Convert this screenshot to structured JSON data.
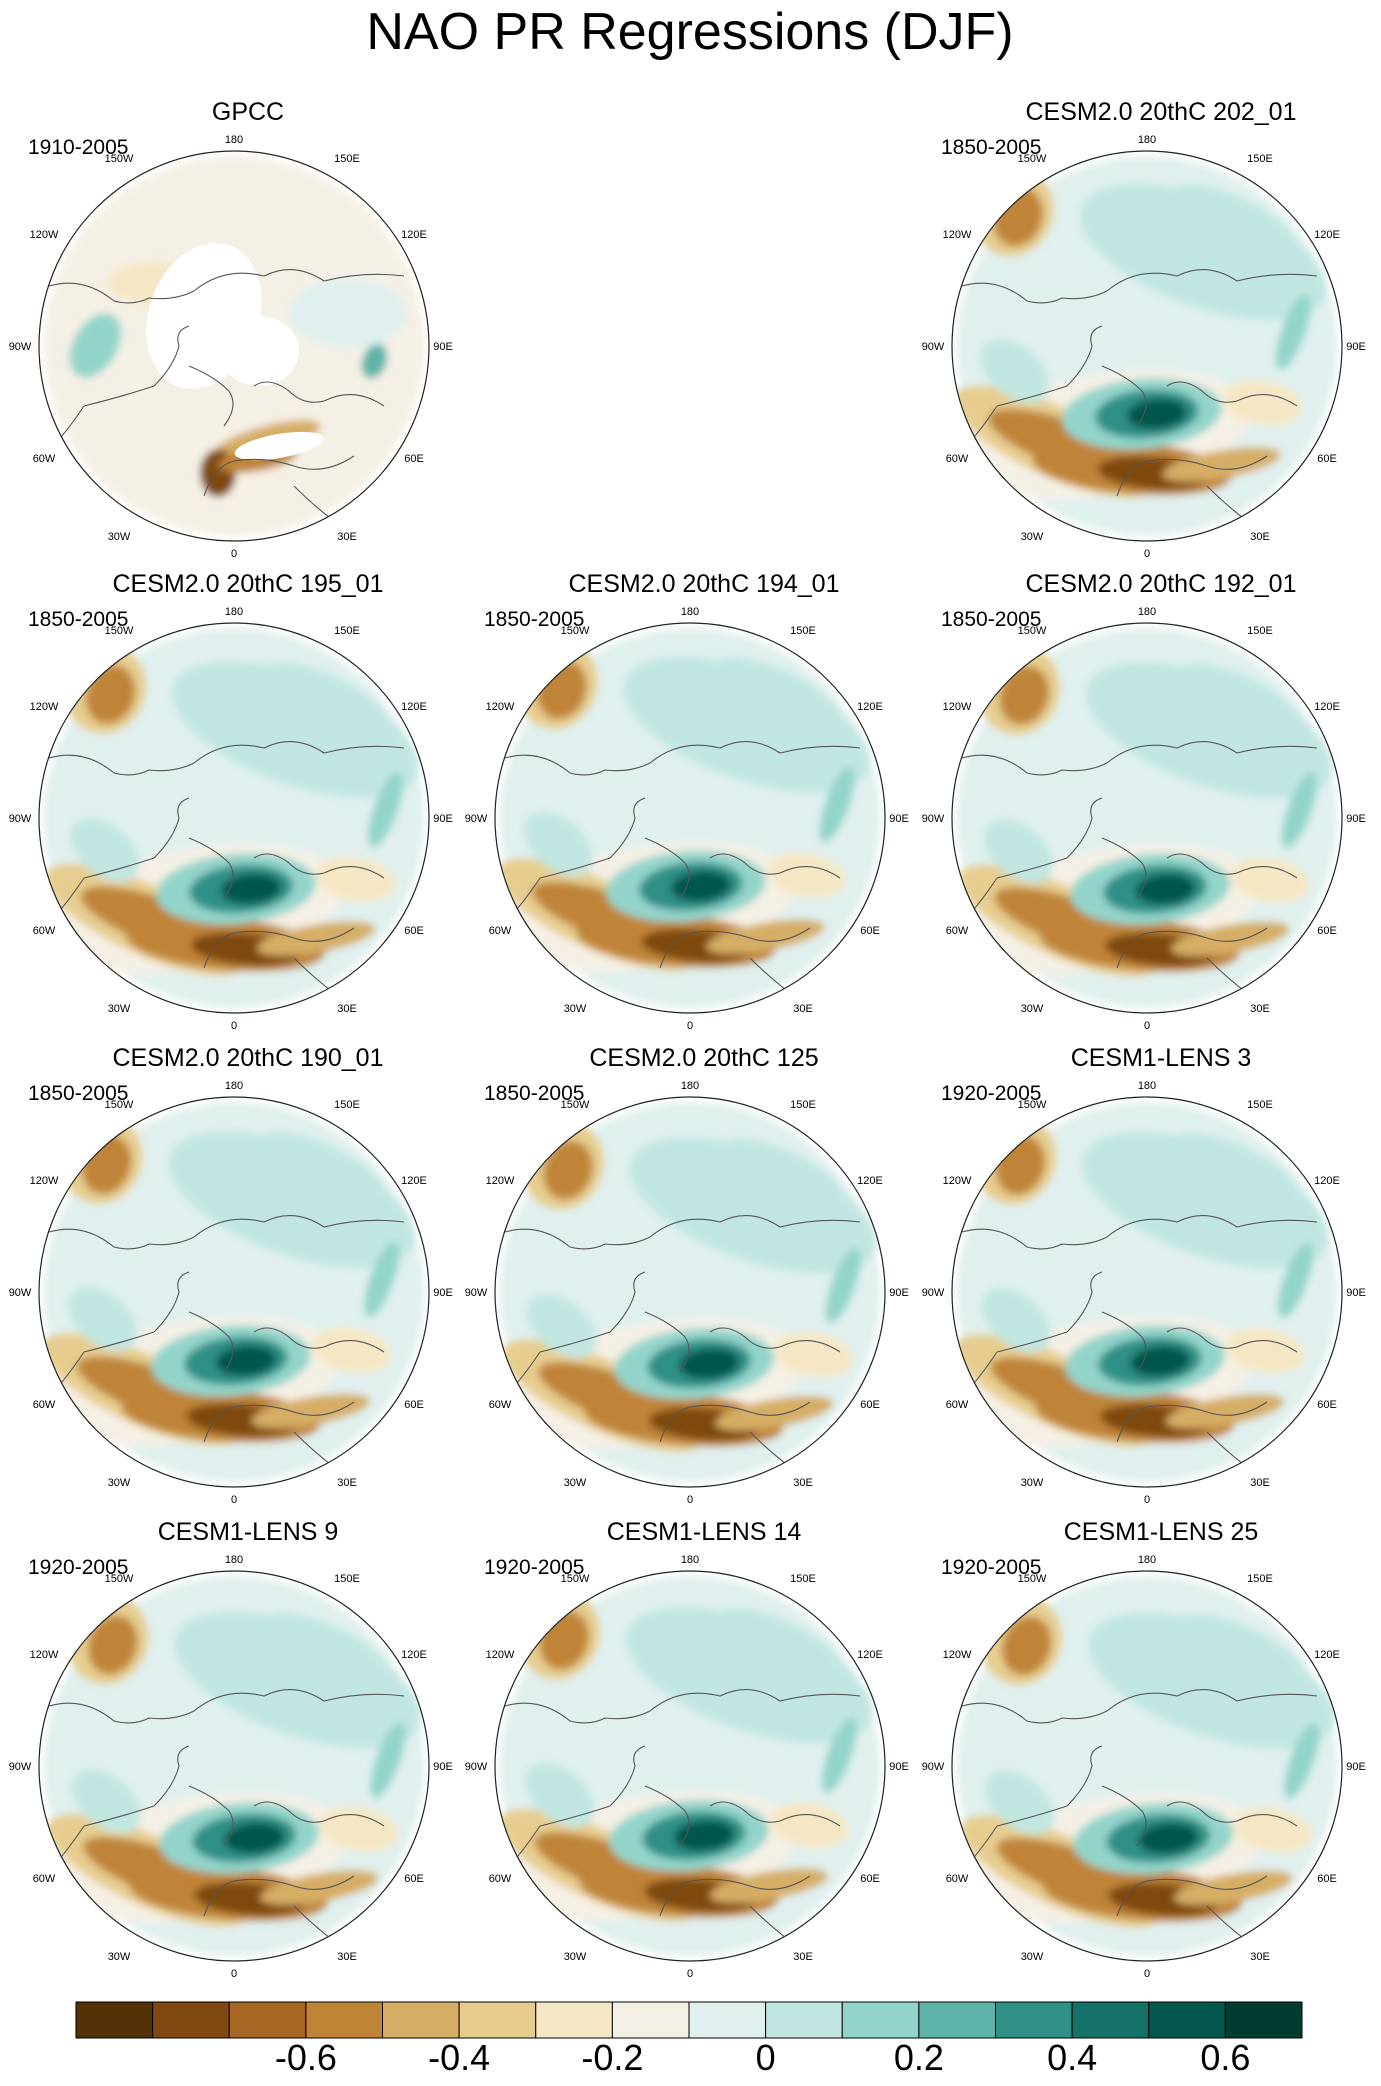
{
  "title": "NAO PR Regressions (DJF)",
  "panels": [
    {
      "title": "GPCC",
      "years": "1910-2005",
      "pattern": "obs"
    },
    null,
    {
      "title": "CESM2.0 20thC 202_01",
      "years": "1850-2005",
      "pattern": "model"
    },
    {
      "title": "CESM2.0 20thC 195_01",
      "years": "1850-2005",
      "pattern": "model"
    },
    {
      "title": "CESM2.0 20thC 194_01",
      "years": "1850-2005",
      "pattern": "model"
    },
    {
      "title": "CESM2.0 20thC 192_01",
      "years": "1850-2005",
      "pattern": "model"
    },
    {
      "title": "CESM2.0 20thC 190_01",
      "years": "1850-2005",
      "pattern": "model"
    },
    {
      "title": "CESM2.0 20thC 125",
      "years": "1850-2005",
      "pattern": "model"
    },
    {
      "title": "CESM1-LENS 3",
      "years": "1920-2005",
      "pattern": "model"
    },
    {
      "title": "CESM1-LENS 9",
      "years": "1920-2005",
      "pattern": "model"
    },
    {
      "title": "CESM1-LENS 14",
      "years": "1920-2005",
      "pattern": "model"
    },
    {
      "title": "CESM1-LENS 25",
      "years": "1920-2005",
      "pattern": "model"
    }
  ],
  "longitude_labels": [
    "180",
    "150E",
    "120E",
    "90E",
    "60E",
    "30E",
    "0",
    "30W",
    "60W",
    "90W",
    "120W",
    "150W"
  ],
  "colorbar": {
    "colors": [
      "#543005",
      "#7f4810",
      "#a66724",
      "#c08437",
      "#d5ad65",
      "#e6cd8f",
      "#f5e7c4",
      "#f5f0e5",
      "#e0f0ee",
      "#c1e6e1",
      "#93d4ca",
      "#5eb3a8",
      "#2f9086",
      "#157269",
      "#03574c",
      "#013c30"
    ],
    "labels": [
      {
        "text": "-0.6",
        "index": 3
      },
      {
        "text": "-0.4",
        "index": 5
      },
      {
        "text": "-0.2",
        "index": 7
      },
      {
        "text": "0",
        "index": 9
      },
      {
        "text": "0.2",
        "index": 11
      },
      {
        "text": "0.4",
        "index": 13
      },
      {
        "text": "0.6",
        "index": 15
      }
    ]
  }
}
